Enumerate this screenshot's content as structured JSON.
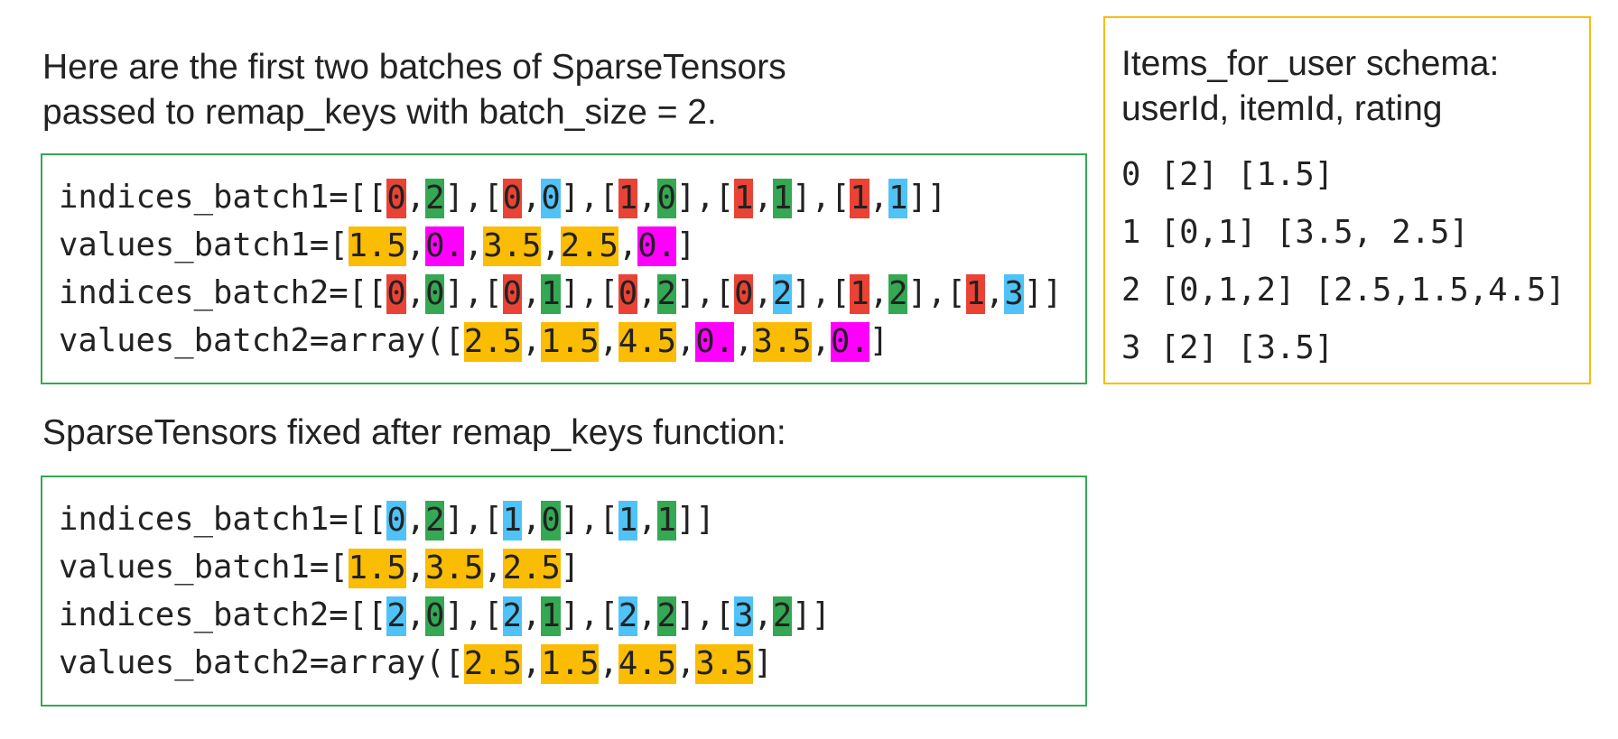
{
  "captions": {
    "intro_line1": "Here are the first two batches of SparseTensors",
    "intro_line2": "passed to remap_keys with batch_size = 2.",
    "fixed": "SparseTensors fixed after remap_keys function:"
  },
  "colors": {
    "red": "#ea4335",
    "green": "#34a853",
    "blue": "#4fc3f7",
    "yellow": "#fbbc04",
    "magenta": "#ff00ff"
  },
  "before_block": [
    {
      "id": "indices-batch1",
      "segments": [
        {
          "t": "indices_batch1=[["
        },
        {
          "t": "0",
          "c": "red"
        },
        {
          "t": ","
        },
        {
          "t": "2",
          "c": "green"
        },
        {
          "t": "],["
        },
        {
          "t": "0",
          "c": "red"
        },
        {
          "t": ","
        },
        {
          "t": "0",
          "c": "blue"
        },
        {
          "t": "],["
        },
        {
          "t": "1",
          "c": "red"
        },
        {
          "t": ","
        },
        {
          "t": "0",
          "c": "green"
        },
        {
          "t": "],["
        },
        {
          "t": "1",
          "c": "red"
        },
        {
          "t": ","
        },
        {
          "t": "1",
          "c": "green"
        },
        {
          "t": "],["
        },
        {
          "t": "1",
          "c": "red"
        },
        {
          "t": ","
        },
        {
          "t": "1",
          "c": "blue"
        },
        {
          "t": "]]"
        }
      ]
    },
    {
      "id": "values-batch1",
      "segments": [
        {
          "t": "values_batch1=["
        },
        {
          "t": "1.5",
          "c": "yellow"
        },
        {
          "t": ","
        },
        {
          "t": "0.",
          "c": "magenta"
        },
        {
          "t": ","
        },
        {
          "t": "3.5",
          "c": "yellow"
        },
        {
          "t": ","
        },
        {
          "t": "2.5",
          "c": "yellow"
        },
        {
          "t": ","
        },
        {
          "t": "0.",
          "c": "magenta"
        },
        {
          "t": "]"
        }
      ]
    },
    {
      "id": "indices-batch2",
      "segments": [
        {
          "t": "indices_batch2=[["
        },
        {
          "t": "0",
          "c": "red"
        },
        {
          "t": ","
        },
        {
          "t": "0",
          "c": "green"
        },
        {
          "t": "],["
        },
        {
          "t": "0",
          "c": "red"
        },
        {
          "t": ","
        },
        {
          "t": "1",
          "c": "green"
        },
        {
          "t": "],["
        },
        {
          "t": "0",
          "c": "red"
        },
        {
          "t": ","
        },
        {
          "t": "2",
          "c": "green"
        },
        {
          "t": "],["
        },
        {
          "t": "0",
          "c": "red"
        },
        {
          "t": ","
        },
        {
          "t": "2",
          "c": "blue"
        },
        {
          "t": "],["
        },
        {
          "t": "1",
          "c": "red"
        },
        {
          "t": ","
        },
        {
          "t": "2",
          "c": "green"
        },
        {
          "t": "],["
        },
        {
          "t": "1",
          "c": "red"
        },
        {
          "t": ","
        },
        {
          "t": "3",
          "c": "blue"
        },
        {
          "t": "]]"
        }
      ]
    },
    {
      "id": "values-batch2",
      "segments": [
        {
          "t": "values_batch2=array(["
        },
        {
          "t": "2.5",
          "c": "yellow"
        },
        {
          "t": ","
        },
        {
          "t": "1.5",
          "c": "yellow"
        },
        {
          "t": ","
        },
        {
          "t": "4.5",
          "c": "yellow"
        },
        {
          "t": ","
        },
        {
          "t": "0.",
          "c": "magenta"
        },
        {
          "t": ","
        },
        {
          "t": "3.5",
          "c": "yellow"
        },
        {
          "t": ","
        },
        {
          "t": "0.",
          "c": "magenta"
        },
        {
          "t": "]"
        }
      ]
    }
  ],
  "after_block": [
    {
      "id": "indices-batch1",
      "segments": [
        {
          "t": "indices_batch1=[["
        },
        {
          "t": "0",
          "c": "blue"
        },
        {
          "t": ","
        },
        {
          "t": "2",
          "c": "green"
        },
        {
          "t": "],["
        },
        {
          "t": "1",
          "c": "blue"
        },
        {
          "t": ","
        },
        {
          "t": "0",
          "c": "green"
        },
        {
          "t": "],["
        },
        {
          "t": "1",
          "c": "blue"
        },
        {
          "t": ","
        },
        {
          "t": "1",
          "c": "green"
        },
        {
          "t": "]]"
        }
      ]
    },
    {
      "id": "values-batch1",
      "segments": [
        {
          "t": "values_batch1=["
        },
        {
          "t": "1.5",
          "c": "yellow"
        },
        {
          "t": ","
        },
        {
          "t": "3.5",
          "c": "yellow"
        },
        {
          "t": ","
        },
        {
          "t": "2.5",
          "c": "yellow"
        },
        {
          "t": "]"
        }
      ]
    },
    {
      "id": "indices-batch2",
      "segments": [
        {
          "t": "indices_batch2=[["
        },
        {
          "t": "2",
          "c": "blue"
        },
        {
          "t": ","
        },
        {
          "t": "0",
          "c": "green"
        },
        {
          "t": "],["
        },
        {
          "t": "2",
          "c": "blue"
        },
        {
          "t": ","
        },
        {
          "t": "1",
          "c": "green"
        },
        {
          "t": "],["
        },
        {
          "t": "2",
          "c": "blue"
        },
        {
          "t": ","
        },
        {
          "t": "2",
          "c": "green"
        },
        {
          "t": "],["
        },
        {
          "t": "3",
          "c": "blue"
        },
        {
          "t": ","
        },
        {
          "t": "2",
          "c": "green"
        },
        {
          "t": "]]"
        }
      ]
    },
    {
      "id": "values-batch2",
      "segments": [
        {
          "t": "values_batch2=array(["
        },
        {
          "t": "2.5",
          "c": "yellow"
        },
        {
          "t": ","
        },
        {
          "t": "1.5",
          "c": "yellow"
        },
        {
          "t": ","
        },
        {
          "t": "4.5",
          "c": "yellow"
        },
        {
          "t": ","
        },
        {
          "t": "3.5",
          "c": "yellow"
        },
        {
          "t": "]"
        }
      ]
    }
  ],
  "schema": {
    "title_line1": "Items_for_user schema:",
    "title_line2": "userId, itemId, rating",
    "rows": [
      "0 [2] [1.5]",
      "1 [0,1] [3.5, 2.5]",
      "2 [0,1,2] [2.5,1.5,4.5]",
      "3 [2] [3.5]"
    ]
  }
}
